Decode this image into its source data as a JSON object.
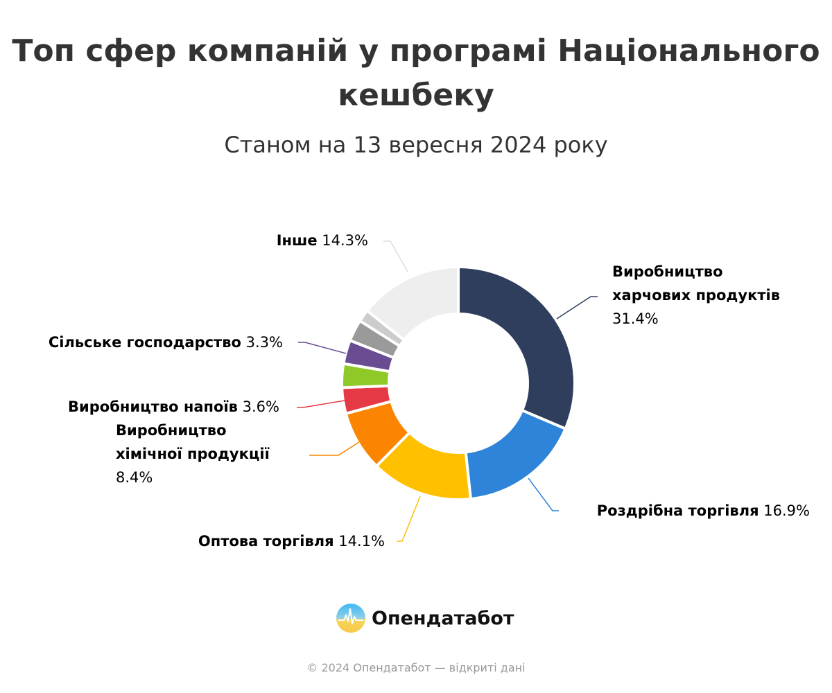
{
  "chart_data": {
    "type": "pie",
    "donut": true,
    "title": "Топ сфер компаній у програмі Національного кешбеку",
    "subtitle": "Станом на 13 вересня 2024 року",
    "slices": [
      {
        "label": "Виробництво харчових продуктів",
        "label_lines": [
          "Виробництво",
          "харчових продуктів"
        ],
        "value": 31.4,
        "value_text": "31.4%",
        "color": "#2e3e5c"
      },
      {
        "label": "Роздрібна торгівля",
        "value": 16.9,
        "value_text": "16.9%",
        "color": "#2d84d9"
      },
      {
        "label": "Оптова торгівля",
        "value": 14.1,
        "value_text": "14.1%",
        "color": "#ffc000"
      },
      {
        "label": "Виробництво хімічної продукції",
        "label_lines": [
          "Виробництво",
          "хімічної продукції"
        ],
        "value": 8.4,
        "value_text": "8.4%",
        "color": "#fb8500"
      },
      {
        "label": "Виробництво напоїв",
        "value": 3.6,
        "value_text": "3.6%",
        "color": "#e63946"
      },
      {
        "label": "",
        "value": 3.3,
        "color": "#8ec928"
      },
      {
        "label": "Сільське господарство",
        "value": 3.3,
        "value_text": "3.3%",
        "color": "#6a4c93"
      },
      {
        "label": "",
        "value": 3.0,
        "color": "#9a9a9a"
      },
      {
        "label": "",
        "value": 1.7,
        "color": "#cccccc"
      },
      {
        "label": "Інше",
        "value": 14.3,
        "value_text": "14.3%",
        "color": "#eeeeee"
      }
    ]
  },
  "logo": {
    "text": "Опендатабот"
  },
  "footer": "© 2024 Опендатабот — відкриті дані"
}
